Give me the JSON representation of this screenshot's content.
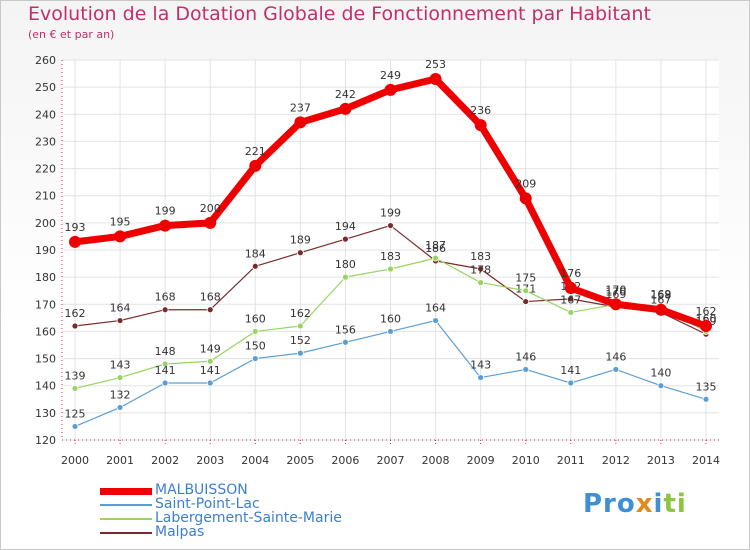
{
  "header": {
    "title": "Evolution de la Dotation Globale de Fonctionnement par Habitant",
    "subtitle": "(en € et par an)"
  },
  "brand": {
    "text": "Proxiti"
  },
  "chart_data": {
    "type": "line",
    "title": "Evolution de la Dotation Globale de Fonctionnement par Habitant",
    "subtitle": "(en € et par an)",
    "xlabel": "",
    "ylabel": "",
    "x": [
      "2000",
      "2001",
      "2002",
      "2003",
      "2004",
      "2005",
      "2006",
      "2007",
      "2008",
      "2009",
      "2010",
      "2011",
      "2012",
      "2013",
      "2014"
    ],
    "ylim": [
      120,
      260
    ],
    "yticks": [
      120,
      130,
      140,
      150,
      160,
      170,
      180,
      190,
      200,
      210,
      220,
      230,
      240,
      250,
      260
    ],
    "grid": true,
    "legend_position": "bottom-left",
    "series": [
      {
        "name": "MALBUISSON",
        "color": "#ee0000",
        "values": [
          193,
          195,
          199,
          200,
          221,
          237,
          242,
          249,
          253,
          236,
          209,
          176,
          170,
          168,
          162
        ]
      },
      {
        "name": "Saint-Point-Lac",
        "color": "#5a9ed6",
        "values": [
          125,
          132,
          141,
          141,
          150,
          152,
          156,
          160,
          164,
          143,
          146,
          141,
          146,
          140,
          135
        ]
      },
      {
        "name": "Labergement-Sainte-Marie",
        "color": "#99d462",
        "values": [
          139,
          143,
          148,
          149,
          160,
          162,
          180,
          183,
          187,
          178,
          175,
          167,
          170,
          169,
          160
        ]
      },
      {
        "name": "Malpas",
        "color": "#7a2a2a",
        "values": [
          162,
          164,
          168,
          168,
          184,
          189,
          194,
          199,
          186,
          183,
          171,
          172,
          169,
          167,
          159
        ]
      }
    ]
  }
}
